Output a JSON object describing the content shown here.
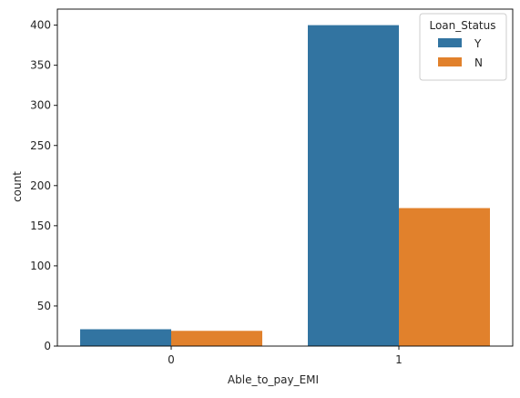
{
  "chart_data": {
    "type": "bar",
    "title": "",
    "xlabel": "Able_to_pay_EMI",
    "ylabel": "count",
    "categories": [
      "0",
      "1"
    ],
    "series": [
      {
        "name": "Y",
        "values": [
          21,
          400
        ],
        "color": "#3274a1"
      },
      {
        "name": "N",
        "values": [
          19,
          172
        ],
        "color": "#e1812c"
      }
    ],
    "ylim": [
      0,
      420
    ],
    "yticks": [
      0,
      50,
      100,
      150,
      200,
      250,
      300,
      350,
      400
    ],
    "grid": false,
    "legend": {
      "title": "Loan_Status",
      "placement": "top-right"
    }
  }
}
